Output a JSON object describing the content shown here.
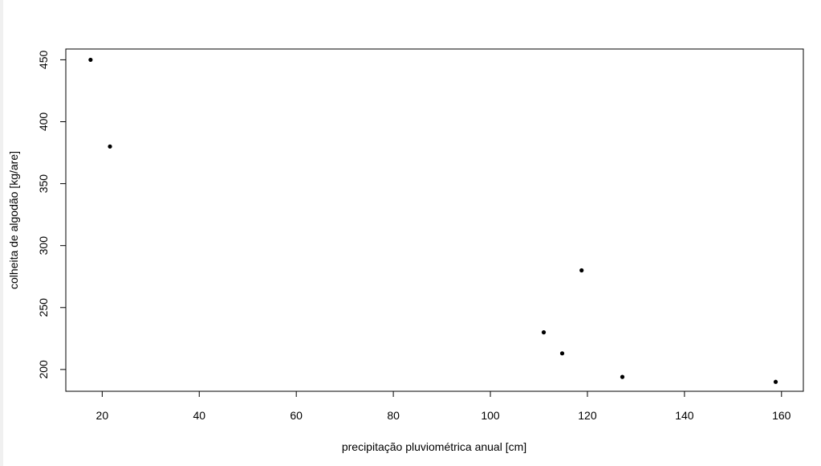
{
  "chart_data": {
    "type": "scatter",
    "title": "",
    "xlabel": "precipitação pluviométrica anual [cm]",
    "ylabel": "colheita de algodão [kg/are]",
    "xlim": [
      12.5,
      164.5
    ],
    "ylim": [
      182.4,
      458.7
    ],
    "xticks": [
      "20",
      "40",
      "60",
      "80",
      "100",
      "120",
      "140",
      "160"
    ],
    "yticks": [
      "200",
      "250",
      "300",
      "350",
      "400",
      "450"
    ],
    "points": [
      {
        "x": 17.6,
        "y": 450
      },
      {
        "x": 21.6,
        "y": 380
      },
      {
        "x": 111.0,
        "y": 230
      },
      {
        "x": 114.8,
        "y": 213
      },
      {
        "x": 118.8,
        "y": 280
      },
      {
        "x": 127.2,
        "y": 194
      },
      {
        "x": 158.8,
        "y": 190
      }
    ],
    "grid": false,
    "legend": "none",
    "marker_color": "#000000"
  }
}
